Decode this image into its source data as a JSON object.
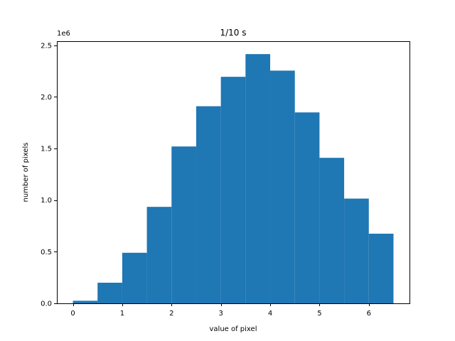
{
  "chart_data": {
    "type": "bar",
    "title": "1/10 s",
    "xlabel": "value of pixel",
    "ylabel": "number of pixels",
    "y_offset_text": "1e6",
    "bin_edges": [
      0,
      0.5,
      1,
      1.5,
      2,
      2.5,
      3,
      3.5,
      4,
      4.5,
      5,
      5.5,
      6,
      6.5
    ],
    "values": [
      25000,
      200000,
      490000,
      935000,
      1520000,
      1910000,
      2195000,
      2415000,
      2255000,
      1850000,
      1410000,
      1015000,
      675000
    ],
    "xlim": [
      -0.325,
      6.825
    ],
    "ylim": [
      0,
      2.54
    ],
    "y_scale": 1000000,
    "x_ticks": [
      0,
      1,
      2,
      3,
      4,
      5,
      6
    ],
    "x_tick_labels": [
      "0",
      "1",
      "2",
      "3",
      "4",
      "5",
      "6"
    ],
    "y_ticks": [
      0,
      0.5,
      1.0,
      1.5,
      2.0,
      2.5
    ],
    "y_tick_labels": [
      "0.0",
      "0.5",
      "1.0",
      "1.5",
      "2.0",
      "2.5"
    ],
    "bar_color": "#1f77b4",
    "grid": false,
    "legend": "none"
  }
}
